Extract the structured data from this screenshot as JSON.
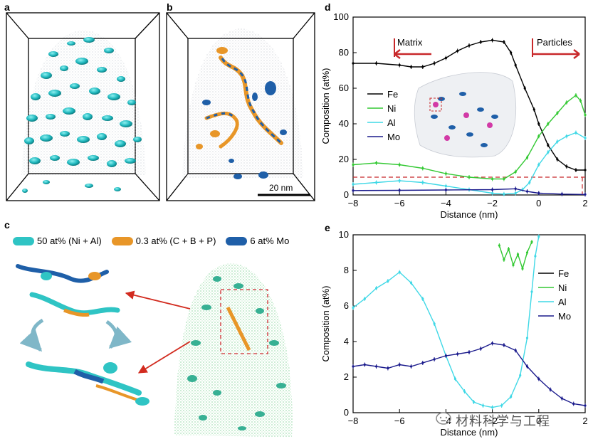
{
  "panels": {
    "a": {
      "label": "a"
    },
    "b": {
      "label": "b",
      "scale_bar": "20 nm"
    },
    "c": {
      "label": "c",
      "legend": [
        {
          "text": "50 at% (Ni + Al)",
          "color": "#2fc4c4"
        },
        {
          "text": "0.3 at% (C + B + P)",
          "color": "#e89628"
        },
        {
          "text": "6 at% Mo",
          "color": "#1f5fa8"
        }
      ]
    },
    "d": {
      "label": "d"
    },
    "e": {
      "label": "e"
    }
  },
  "colors": {
    "Fe": "#000000",
    "Ni": "#34c934",
    "Al": "#3fd8e6",
    "Mo": "#1a1a8c",
    "dashed": "#c8282a",
    "arrow": "#d22b1f"
  },
  "watermark": "材料科学与工程",
  "chart_data": [
    {
      "id": "d",
      "type": "line",
      "xlabel": "Distance (nm)",
      "ylabel": "Composition (at%)",
      "xlim": [
        -8,
        2
      ],
      "ylim": [
        0,
        100
      ],
      "xticks": [
        -8,
        -6,
        -4,
        -2,
        0,
        2
      ],
      "yticks": [
        0,
        20,
        40,
        60,
        80,
        100
      ],
      "legend": [
        "Fe",
        "Ni",
        "Al",
        "Mo"
      ],
      "annotations": {
        "left": "Matrix",
        "right": "Particles"
      },
      "dashed_line_y": 10,
      "series": [
        {
          "name": "Fe",
          "x": [
            -8,
            -7,
            -6,
            -5.5,
            -5,
            -4.5,
            -4,
            -3.5,
            -3,
            -2.5,
            -2,
            -1.5,
            -1.2,
            -1,
            -0.6,
            -0.2,
            0,
            0.4,
            0.8,
            1.2,
            1.6,
            2
          ],
          "y": [
            74,
            74,
            73,
            72,
            72,
            74,
            77,
            81,
            84,
            86,
            87,
            86,
            80,
            73,
            60,
            48,
            40,
            28,
            20,
            16,
            14,
            14
          ]
        },
        {
          "name": "Ni",
          "x": [
            -8,
            -7,
            -6,
            -5,
            -4,
            -3,
            -2,
            -1.5,
            -1,
            -0.5,
            0,
            0.4,
            0.8,
            1.2,
            1.6,
            1.8,
            2
          ],
          "y": [
            17,
            18,
            17,
            15,
            12,
            10,
            9,
            9,
            13,
            21,
            33,
            40,
            46,
            52,
            56,
            53,
            45
          ]
        },
        {
          "name": "Al",
          "x": [
            -8,
            -7,
            -6,
            -5,
            -4,
            -3,
            -2,
            -1.5,
            -1,
            -0.7,
            -0.4,
            0,
            0.4,
            0.8,
            1.2,
            1.6,
            2
          ],
          "y": [
            6,
            7,
            8,
            7,
            5,
            3,
            1,
            0.5,
            1,
            3,
            7,
            17,
            24,
            30,
            33,
            35,
            32
          ]
        },
        {
          "name": "Mo",
          "x": [
            -8,
            -6,
            -4,
            -2,
            -1,
            -0.5,
            0,
            1,
            2
          ],
          "y": [
            2.5,
            2.6,
            2.8,
            3,
            3.5,
            2,
            1,
            0.5,
            0.3
          ]
        }
      ]
    },
    {
      "id": "e",
      "type": "line",
      "xlabel": "Distance (nm)",
      "ylabel": "Composition (at%)",
      "xlim": [
        -8,
        2
      ],
      "ylim": [
        0,
        10
      ],
      "xticks": [
        -8,
        -6,
        -4,
        -2,
        0,
        2
      ],
      "yticks": [
        0,
        2,
        4,
        6,
        8,
        10
      ],
      "legend": [
        "Fe",
        "Ni",
        "Al",
        "Mo"
      ],
      "series": [
        {
          "name": "Ni",
          "x": [
            -1.7,
            -1.5,
            -1.3,
            -1.1,
            -0.9,
            -0.7,
            -0.5,
            -0.3
          ],
          "y": [
            9.4,
            8.6,
            9.2,
            8.3,
            8.9,
            8.1,
            9.0,
            9.6
          ]
        },
        {
          "name": "Al",
          "x": [
            -8,
            -7.5,
            -7,
            -6.5,
            -6,
            -5.5,
            -5,
            -4.5,
            -4,
            -3.6,
            -3.2,
            -2.8,
            -2.4,
            -2,
            -1.6,
            -1.2,
            -0.8,
            -0.5,
            -0.3,
            -0.15,
            0
          ],
          "y": [
            5.9,
            6.4,
            7.0,
            7.4,
            7.9,
            7.3,
            6.4,
            5.0,
            3.2,
            1.9,
            1.2,
            0.6,
            0.4,
            0.3,
            0.4,
            0.9,
            2.1,
            4.2,
            6.8,
            8.8,
            9.9
          ]
        },
        {
          "name": "Mo",
          "x": [
            -8,
            -7.5,
            -7,
            -6.5,
            -6,
            -5.5,
            -5,
            -4.5,
            -4,
            -3.5,
            -3,
            -2.5,
            -2,
            -1.5,
            -1,
            -0.5,
            0,
            0.5,
            1,
            1.5,
            2
          ],
          "y": [
            2.6,
            2.7,
            2.6,
            2.5,
            2.7,
            2.6,
            2.8,
            3.0,
            3.2,
            3.3,
            3.4,
            3.6,
            3.9,
            3.8,
            3.5,
            2.6,
            1.9,
            1.3,
            0.8,
            0.5,
            0.4
          ]
        }
      ]
    }
  ]
}
